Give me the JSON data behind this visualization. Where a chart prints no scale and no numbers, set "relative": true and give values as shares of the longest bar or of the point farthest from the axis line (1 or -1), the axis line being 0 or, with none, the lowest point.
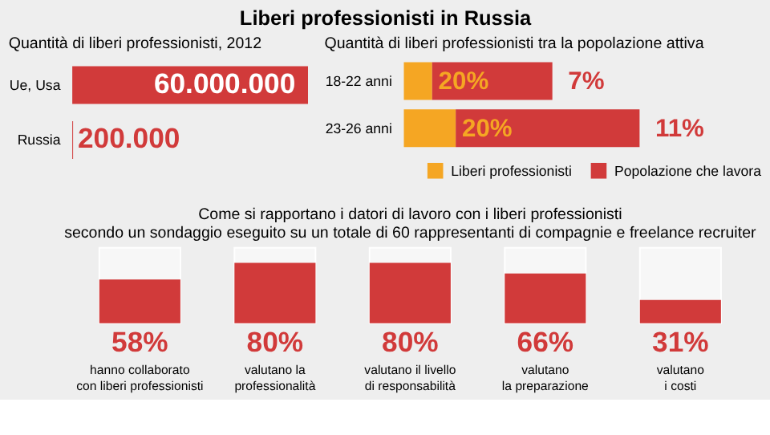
{
  "chart_data": [
    {
      "type": "bar",
      "orientation": "horizontal",
      "title": "Liberi professionisti in Russia",
      "subtitle": "Quantità di liberi professionisti, 2012",
      "categories": [
        "Ue, Usa",
        "Russia"
      ],
      "values": [
        60000000,
        200000
      ],
      "color": "#d13a3a",
      "value_labels": [
        "60.000.000",
        "200.000"
      ]
    },
    {
      "type": "bar",
      "orientation": "horizontal",
      "stacked": true,
      "relative": true,
      "title": "Quantità di liberi professionisti tra la popolazione attiva",
      "categories": [
        "18-22 anni",
        "23-26 anni"
      ],
      "series": [
        {
          "name": "Liberi professionisti",
          "color": "#f5a623",
          "values": [
            0.12,
            0.22
          ]
        },
        {
          "name": "Popolazione che lavora",
          "color": "#d13a3a",
          "values": [
            0.51,
            0.78
          ]
        }
      ],
      "annotations": [
        {
          "text": "20%",
          "x": 0.12,
          "y": "18-22 anni"
        },
        {
          "text": "20%",
          "x": 0.22,
          "y": "23-26 anni"
        },
        {
          "text": "7%",
          "x": 0.63,
          "y": "18-22 anni"
        },
        {
          "text": "11%",
          "x": 1.0,
          "y": "23-26 anni"
        }
      ],
      "legend": "bottom"
    },
    {
      "type": "bar",
      "title": "Come si rapportano i datori di lavoro con i liberi professionisti\nsecondo un sondaggio eseguito su un totale di 60 rappresentanti di compagnie e freelance recruiter",
      "categories": [
        "hanno collaborato\ncon liberi professionisti",
        "valutano la\nprofessionalità",
        "valutano il livello\ndi responsabilità",
        "valutano\nla preparazione",
        "valutano\ni costi"
      ],
      "values": [
        58,
        80,
        80,
        66,
        31
      ],
      "value_labels": [
        "58%",
        "80%",
        "80%",
        "66%",
        "31%"
      ],
      "color": "#d13a3a",
      "ylim": [
        0,
        100
      ],
      "tick_labels": "x"
    }
  ]
}
